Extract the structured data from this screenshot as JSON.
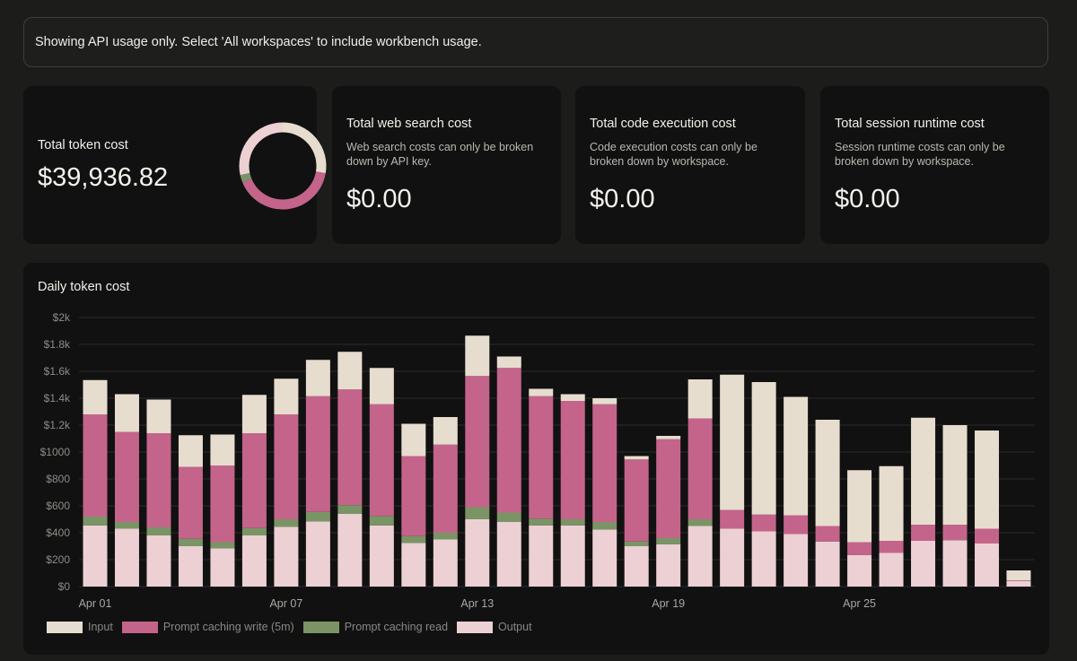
{
  "banner": {
    "text": "Showing API usage only. Select 'All workspaces' to include workbench usage."
  },
  "cards": {
    "token": {
      "title": "Total token cost",
      "value": "$39,936.82"
    },
    "web_search": {
      "title": "Total web search cost",
      "desc": "Web search costs can only be broken down by API key.",
      "value": "$0.00"
    },
    "code_exec": {
      "title": "Total code execution cost",
      "desc": "Code execution costs can only be broken down by workspace.",
      "value": "$0.00"
    },
    "session": {
      "title": "Total session runtime cost",
      "desc": "Session runtime costs can only be broken down by workspace.",
      "value": "$0.00"
    }
  },
  "colors": {
    "input": "#e6ddcf",
    "write": "#c4648a",
    "read": "#7a9465",
    "output": "#ecd0d4"
  },
  "chart_data": {
    "type": "bar",
    "stacked": true,
    "title": "Daily token cost",
    "ylim": [
      0,
      2000
    ],
    "yticks": [
      "$0",
      "$200",
      "$400",
      "$600",
      "$800",
      "$1000",
      "$1.2k",
      "$1.4k",
      "$1.6k",
      "$1.8k",
      "$2k"
    ],
    "ytick_values": [
      0,
      200,
      400,
      600,
      800,
      1000,
      1200,
      1400,
      1600,
      1800,
      2000
    ],
    "categories": [
      "Apr 01",
      "Apr 02",
      "Apr 03",
      "Apr 04",
      "Apr 05",
      "Apr 06",
      "Apr 07",
      "Apr 08",
      "Apr 09",
      "Apr 10",
      "Apr 11",
      "Apr 12",
      "Apr 13",
      "Apr 14",
      "Apr 15",
      "Apr 16",
      "Apr 17",
      "Apr 18",
      "Apr 19",
      "Apr 20",
      "Apr 21",
      "Apr 22",
      "Apr 23",
      "Apr 24",
      "Apr 25",
      "Apr 26",
      "Apr 27",
      "Apr 28",
      "Apr 29",
      "Apr 30"
    ],
    "xtick_labels": [
      {
        "index": 0,
        "label": "Apr 01"
      },
      {
        "index": 6,
        "label": "Apr 07"
      },
      {
        "index": 12,
        "label": "Apr 13"
      },
      {
        "index": 18,
        "label": "Apr 19"
      },
      {
        "index": 24,
        "label": "Apr 25"
      }
    ],
    "series": [
      {
        "name": "Output",
        "key": "output",
        "values": [
          455,
          430,
          380,
          300,
          285,
          380,
          445,
          485,
          540,
          455,
          325,
          350,
          500,
          480,
          455,
          455,
          425,
          300,
          315,
          450,
          430,
          410,
          390,
          335,
          235,
          250,
          340,
          345,
          320,
          40
        ]
      },
      {
        "name": "Prompt caching read",
        "key": "read",
        "values": [
          65,
          50,
          60,
          55,
          45,
          55,
          55,
          70,
          65,
          70,
          50,
          50,
          90,
          70,
          50,
          45,
          55,
          35,
          45,
          50,
          0,
          0,
          0,
          0,
          0,
          0,
          0,
          0,
          0,
          0
        ]
      },
      {
        "name": "Prompt caching write (5m)",
        "key": "write",
        "values": [
          760,
          670,
          700,
          535,
          570,
          705,
          780,
          860,
          860,
          830,
          595,
          655,
          975,
          1075,
          910,
          880,
          875,
          610,
          735,
          750,
          140,
          125,
          140,
          115,
          95,
          90,
          120,
          115,
          110,
          5
        ]
      },
      {
        "name": "Input",
        "key": "input",
        "values": [
          255,
          280,
          250,
          235,
          230,
          285,
          265,
          270,
          280,
          270,
          240,
          205,
          300,
          85,
          55,
          50,
          45,
          25,
          25,
          290,
          1005,
          985,
          880,
          790,
          535,
          555,
          795,
          740,
          730,
          75
        ]
      }
    ],
    "legend": [
      "Input",
      "Prompt caching write (5m)",
      "Prompt caching read",
      "Output"
    ],
    "legend_position": "bottom-left"
  }
}
